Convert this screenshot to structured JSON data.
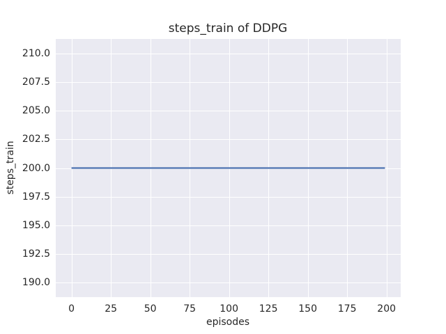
{
  "chart_data": {
    "type": "line",
    "title": "steps_train of DDPG",
    "xlabel": "episodes",
    "ylabel": "steps_train",
    "x_ticks": [
      0,
      25,
      50,
      75,
      100,
      125,
      150,
      175,
      200
    ],
    "y_ticks": [
      190.0,
      192.5,
      195.0,
      197.5,
      200.0,
      202.5,
      205.0,
      207.5,
      210.0
    ],
    "y_tick_decimals": 1,
    "xlim": [
      -10,
      209
    ],
    "ylim": [
      188.75,
      211.25
    ],
    "grid": true,
    "legend": "none",
    "series": [
      {
        "name": "steps_train",
        "color": "#4C72B0",
        "x": [
          0,
          199
        ],
        "y": [
          200,
          200
        ]
      }
    ]
  },
  "style": {
    "plot_bg": "#EAEAF2",
    "grid_color": "#ffffff",
    "text_color": "#262626",
    "figure_bg": "#ffffff"
  }
}
